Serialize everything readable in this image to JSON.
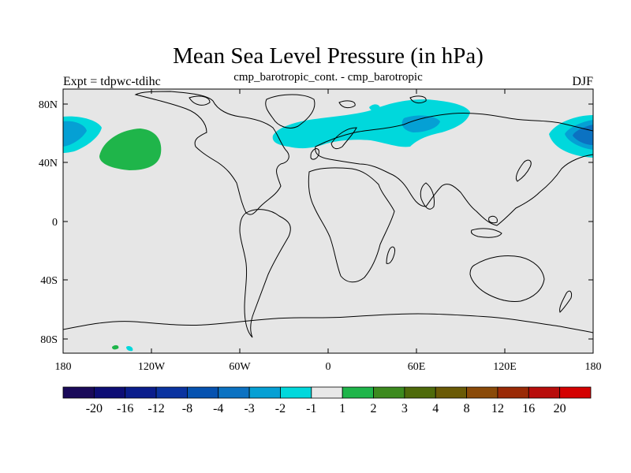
{
  "title": "Mean Sea Level Pressure (in hPa)",
  "left_label": "Expt = tdpwc-tdihc",
  "center_label": "cmp_barotropic_cont. - cmp_barotropic",
  "right_label": "DJF",
  "lat_ticks": [
    "80N",
    "40N",
    "0",
    "40S",
    "80S"
  ],
  "lon_ticks": [
    "180",
    "120W",
    "60W",
    "0",
    "60E",
    "120E",
    "180"
  ],
  "colorbar": {
    "labels": [
      "-20",
      "-16",
      "-12",
      "-8",
      "-4",
      "-3",
      "-2",
      "-1",
      "1",
      "2",
      "3",
      "4",
      "8",
      "12",
      "16",
      "20"
    ],
    "colors": [
      "#1a0a5a",
      "#0d0d75",
      "#0a1d8c",
      "#0a33a0",
      "#0552b0",
      "#0b72c2",
      "#05a0d4",
      "#00d8dc",
      "#e8e8e8",
      "#1fb54a",
      "#3c8a1e",
      "#4e6a0a",
      "#6a5a06",
      "#8a4a08",
      "#9a2a06",
      "#b80d0b",
      "#d40000"
    ]
  },
  "map": {
    "background": "#e6e6e6",
    "coast": "#000000"
  }
}
